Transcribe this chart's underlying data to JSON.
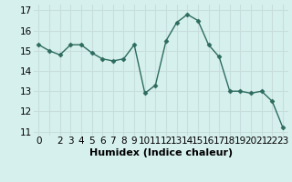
{
  "x": [
    0,
    1,
    2,
    3,
    4,
    5,
    6,
    7,
    8,
    9,
    10,
    11,
    12,
    13,
    14,
    15,
    16,
    17,
    18,
    19,
    20,
    21,
    22,
    23
  ],
  "y": [
    15.3,
    15.0,
    14.8,
    15.3,
    15.3,
    14.9,
    14.6,
    14.5,
    14.6,
    15.3,
    12.9,
    13.3,
    15.5,
    16.4,
    16.8,
    16.5,
    15.3,
    14.7,
    13.0,
    13.0,
    12.9,
    13.0,
    12.5,
    11.2
  ],
  "line_color": "#2d6b5e",
  "marker": "D",
  "marker_size": 2.5,
  "bg_color": "#d6f0ee",
  "grid_color": "#c8dede",
  "xlabel": "Humidex (Indice chaleur)",
  "ylabel_ticks": [
    11,
    12,
    13,
    14,
    15,
    16,
    17
  ],
  "xtick_labels": [
    "0",
    "",
    "2",
    "3",
    "4",
    "5",
    "6",
    "7",
    "8",
    "9",
    "10",
    "11",
    "12",
    "13",
    "14",
    "15",
    "16",
    "17",
    "18",
    "19",
    "20",
    "21",
    "22",
    "23"
  ],
  "xlim": [
    -0.5,
    23.5
  ],
  "ylim": [
    10.8,
    17.3
  ],
  "xlabel_fontsize": 8,
  "tick_fontsize": 7.5,
  "linewidth": 1.0
}
